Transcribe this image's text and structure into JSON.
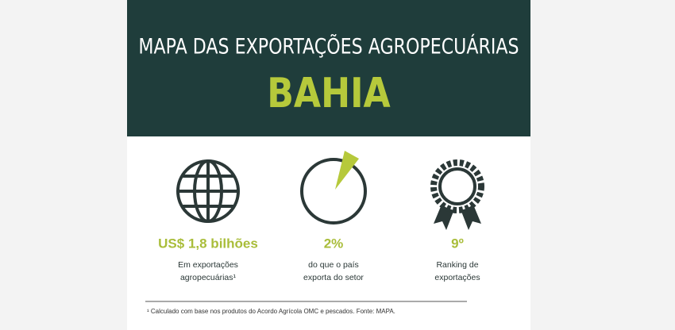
{
  "header": {
    "title": "MAPA DAS EXPORTAÇÕES AGROPECUÁRIAS",
    "subtitle": "BAHIA"
  },
  "stats": [
    {
      "value": "US$ 1,8 bilhões",
      "description": [
        "Em exportações",
        "agropecuárias¹"
      ]
    },
    {
      "value": "2%",
      "description": [
        "do que o país",
        "exporta do setor"
      ]
    },
    {
      "value": "9º",
      "description": [
        "Ranking de",
        "exportações"
      ]
    }
  ],
  "footnote": "¹ Calculado com base nos produtos do Acordo Agrícola OMC e pescados. Fonte: MAPA."
}
